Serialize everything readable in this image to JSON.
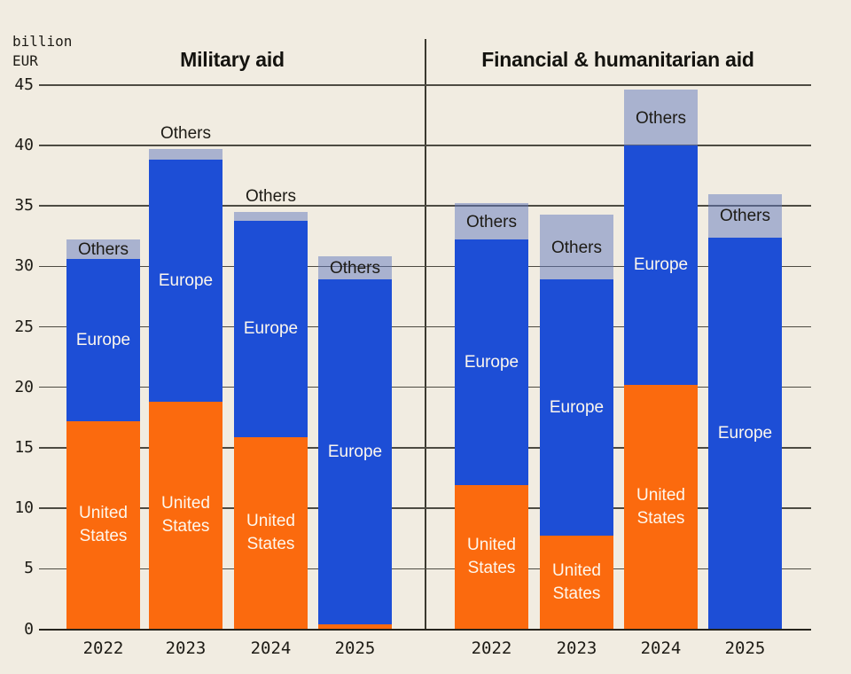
{
  "chart_data": {
    "type": "bar",
    "stacked": true,
    "ylabel": "billion EUR",
    "ylim": [
      0,
      45
    ],
    "yticks": [
      0,
      5,
      10,
      15,
      20,
      25,
      30,
      35,
      40,
      45
    ],
    "grid": true,
    "legend_position": "labels-inside-bars",
    "categories": [
      "2022",
      "2023",
      "2024",
      "2025"
    ],
    "panels": [
      {
        "title": "Military aid",
        "series": [
          {
            "name": "United States",
            "color": "#fb6a0e",
            "values": [
              17.2,
              18.8,
              15.9,
              0.4
            ]
          },
          {
            "name": "Europe",
            "color": "#1d4ed6",
            "values": [
              13.4,
              20.0,
              17.9,
              28.5
            ]
          },
          {
            "name": "Others",
            "color": "#a9b2cf",
            "values": [
              1.6,
              0.9,
              0.7,
              1.9
            ]
          }
        ],
        "totals": [
          32.2,
          39.7,
          34.5,
          30.8
        ]
      },
      {
        "title": "Financial & humanitarian aid",
        "series": [
          {
            "name": "United States",
            "color": "#fb6a0e",
            "values": [
              11.9,
              7.7,
              20.2,
              0
            ]
          },
          {
            "name": "Europe",
            "color": "#1d4ed6",
            "values": [
              20.3,
              21.2,
              19.8,
              32.4
            ]
          },
          {
            "name": "Others",
            "color": "#a9b2cf",
            "values": [
              3.0,
              5.4,
              4.6,
              3.6
            ]
          }
        ],
        "totals": [
          35.2,
          34.3,
          44.6,
          36.0
        ]
      }
    ]
  },
  "colors": {
    "background": "#f1ece1",
    "us_orange": "#fb6a0e",
    "europe_blue": "#1d4ed6",
    "others_lavender": "#a9b2cf",
    "gridline": "#4d4b42",
    "axis_baseline": "#26241c",
    "text_dark": "#1d1b15",
    "text_light": "#fdf7ed"
  }
}
